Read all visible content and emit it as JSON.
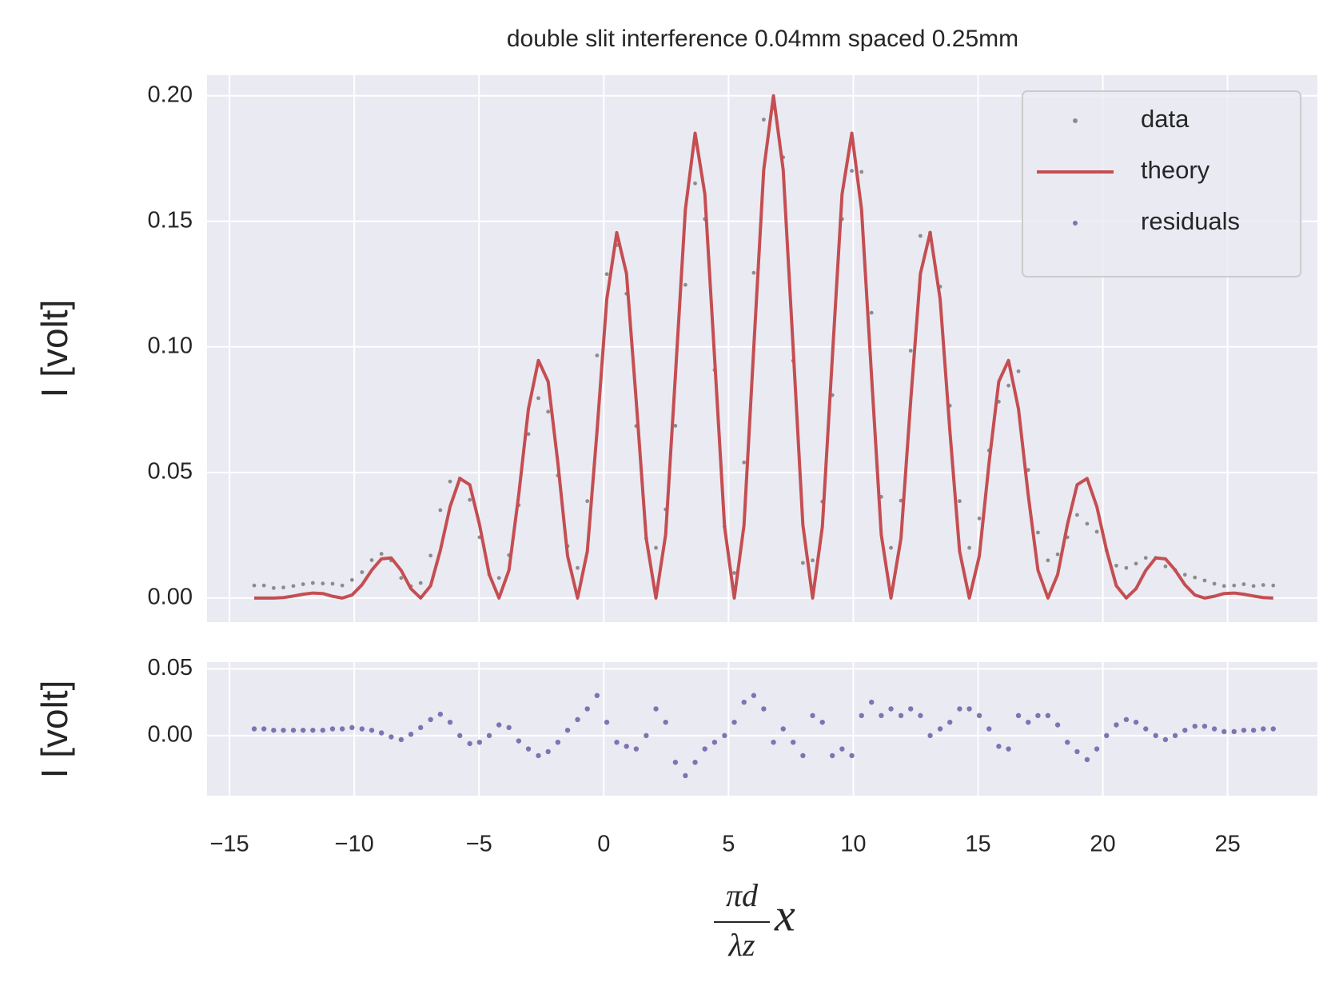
{
  "chart_data": {
    "type": "scatter",
    "title": "double slit interference 0.04mm spaced 0.25mm",
    "xlabel": [
      "πd",
      "λz",
      "x"
    ],
    "ylabel": "I [volt]",
    "y2label": "I [volt]",
    "xlim": [
      -15.9,
      28.6
    ],
    "xticks": [
      {
        "value": -15,
        "label": "−15"
      },
      {
        "value": -10,
        "label": "−10"
      },
      {
        "value": -5,
        "label": "−5"
      },
      0,
      5,
      10,
      15,
      20,
      25
    ],
    "ylim": [
      -0.0096,
      0.2082
    ],
    "yticks": [
      {
        "value": 0,
        "label": "0.00"
      },
      0.05,
      {
        "value": 0.1,
        "label": "0.10"
      },
      0.15,
      {
        "value": 0.2,
        "label": "0.20"
      }
    ],
    "y2lim": [
      -0.045,
      0.055
    ],
    "y2ticks": [
      {
        "value": 0,
        "label": "0.00"
      },
      0.05
    ],
    "grid": true,
    "legend": "upper right",
    "x": [
      -14.01,
      -13.62,
      -13.23,
      -12.84,
      -12.44,
      -12.05,
      -11.66,
      -11.26,
      -10.87,
      -10.48,
      -10.09,
      -9.69,
      -9.3,
      -8.91,
      -8.52,
      -8.12,
      -7.73,
      -7.34,
      -6.94,
      -6.55,
      -6.16,
      -5.77,
      -5.37,
      -4.98,
      -4.59,
      -4.2,
      -3.8,
      -3.41,
      -3.02,
      -2.62,
      -2.23,
      -1.84,
      -1.45,
      -1.05,
      -0.66,
      -0.27,
      0.12,
      0.52,
      0.91,
      1.3,
      1.7,
      2.09,
      2.48,
      2.87,
      3.27,
      3.66,
      4.05,
      4.44,
      4.84,
      5.23,
      5.62,
      6.01,
      6.41,
      6.8,
      7.19,
      7.59,
      7.98,
      8.37,
      8.76,
      9.16,
      9.55,
      9.94,
      10.33,
      10.73,
      11.12,
      11.51,
      11.91,
      12.3,
      12.69,
      13.08,
      13.48,
      13.87,
      14.26,
      14.65,
      15.05,
      15.44,
      15.83,
      16.22,
      16.62,
      17.01,
      17.4,
      17.8,
      18.19,
      18.58,
      18.97,
      19.37,
      19.76,
      20.15,
      20.54,
      20.94,
      21.33,
      21.72,
      22.12,
      22.51,
      22.9,
      23.29,
      23.69,
      24.08,
      24.47,
      24.86,
      25.26,
      25.65,
      26.04,
      26.43,
      26.83
    ],
    "series": [
      {
        "name": "data",
        "color": "#8c8c8c",
        "mode": "markers",
        "values": [
          0.005,
          0.005,
          0.004,
          0.0042,
          0.0048,
          0.0055,
          0.006,
          0.0058,
          0.0057,
          0.005,
          0.0072,
          0.0103,
          0.0151,
          0.0176,
          0.015,
          0.008,
          0.0047,
          0.006,
          0.0169,
          0.035,
          0.0464,
          0.0476,
          0.0391,
          0.0242,
          0.0094,
          0.008,
          0.0171,
          0.037,
          0.0653,
          0.0796,
          0.0742,
          0.0488,
          0.0207,
          0.012,
          0.0386,
          0.0966,
          0.129,
          0.1405,
          0.1212,
          0.0685,
          0.0238,
          0.02,
          0.0353,
          0.0686,
          0.1247,
          0.1651,
          0.1509,
          0.0908,
          0.0284,
          0.01,
          0.054,
          0.1295,
          0.1905,
          0.195,
          0.1755,
          0.0945,
          0.014,
          0.015,
          0.0384,
          0.0808,
          0.1509,
          0.1701,
          0.1697,
          0.1136,
          0.0403,
          0.02,
          0.0388,
          0.0985,
          0.1442,
          0.1455,
          0.124,
          0.0766,
          0.0386,
          0.02,
          0.0317,
          0.0588,
          0.0782,
          0.0846,
          0.0903,
          0.051,
          0.0261,
          0.015,
          0.0174,
          0.0242,
          0.0331,
          0.0296,
          0.0264,
          0.019,
          0.0129,
          0.012,
          0.0137,
          0.016,
          0.016,
          0.0126,
          0.0111,
          0.0093,
          0.0082,
          0.007,
          0.0057,
          0.0048,
          0.005,
          0.0055,
          0.0048,
          0.0052,
          0.005
        ]
      },
      {
        "name": "theory",
        "color": "#c44e52",
        "mode": "line",
        "values": [
          0,
          0,
          0,
          0.0002,
          0.0008,
          0.0015,
          0.002,
          0.0018,
          0.0007,
          0,
          0.0012,
          0.0053,
          0.0111,
          0.0156,
          0.016,
          0.011,
          0.0037,
          0,
          0.0049,
          0.019,
          0.0364,
          0.0476,
          0.0451,
          0.0292,
          0.0094,
          0,
          0.0111,
          0.041,
          0.0753,
          0.0946,
          0.0862,
          0.0538,
          0.0167,
          0,
          0.0186,
          0.0666,
          0.119,
          0.1455,
          0.1292,
          0.0785,
          0.0238,
          0,
          0.0253,
          0.0886,
          0.1547,
          0.1851,
          0.1609,
          0.0958,
          0.0284,
          0,
          0.029,
          0.0995,
          0.1705,
          0.2,
          0.1705,
          0.0995,
          0.029,
          0,
          0.0284,
          0.0958,
          0.1609,
          0.1851,
          0.1547,
          0.0886,
          0.0253,
          0,
          0.0238,
          0.0785,
          0.1292,
          0.1455,
          0.119,
          0.0666,
          0.0186,
          0,
          0.0167,
          0.0538,
          0.0862,
          0.0946,
          0.0753,
          0.041,
          0.0111,
          0,
          0.0094,
          0.0292,
          0.0451,
          0.0476,
          0.0364,
          0.019,
          0.0049,
          0,
          0.0037,
          0.011,
          0.016,
          0.0156,
          0.0111,
          0.0053,
          0.0012,
          0,
          0.0007,
          0.0018,
          0.002,
          0.0015,
          0.0008,
          0.0002,
          0
        ]
      },
      {
        "name": "residuals",
        "color": "#8172b3",
        "mode": "markers",
        "axis": "y2",
        "values": [
          0.005,
          0.005,
          0.004,
          0.004,
          0.004,
          0.004,
          0.004,
          0.004,
          0.005,
          0.005,
          0.006,
          0.005,
          0.004,
          0.002,
          -0.001,
          -0.003,
          0.001,
          0.006,
          0.012,
          0.016,
          0.01,
          0,
          -0.006,
          -0.005,
          0,
          0.008,
          0.006,
          -0.004,
          -0.01,
          -0.015,
          -0.012,
          -0.005,
          0.004,
          0.012,
          0.02,
          0.03,
          0.01,
          -0.005,
          -0.008,
          -0.01,
          0,
          0.02,
          0.01,
          -0.02,
          -0.03,
          -0.02,
          -0.01,
          -0.005,
          0,
          0.01,
          0.025,
          0.03,
          0.02,
          -0.005,
          0.005,
          -0.005,
          -0.015,
          0.015,
          0.01,
          -0.015,
          -0.01,
          -0.015,
          0.015,
          0.025,
          0.015,
          0.02,
          0.015,
          0.02,
          0.015,
          0,
          0.005,
          0.01,
          0.02,
          0.02,
          0.015,
          0.005,
          -0.008,
          -0.01,
          0.015,
          0.01,
          0.015,
          0.015,
          0.008,
          -0.005,
          -0.012,
          -0.018,
          -0.01,
          0,
          0.008,
          0.012,
          0.01,
          0.005,
          0,
          -0.003,
          0,
          0.004,
          0.007,
          0.007,
          0.005,
          0.003,
          0.003,
          0.004,
          0.004,
          0.005,
          0.005
        ]
      }
    ]
  }
}
